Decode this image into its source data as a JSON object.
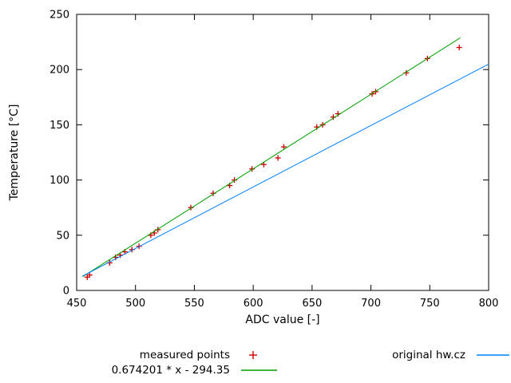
{
  "chart_data": {
    "type": "scatter",
    "title": "",
    "xlabel": "ADC value [-]",
    "ylabel": "Temperature [°C]",
    "xlim": [
      450,
      800
    ],
    "ylim": [
      0,
      250
    ],
    "xticks": [
      450,
      500,
      550,
      600,
      650,
      700,
      750,
      800
    ],
    "yticks": [
      0,
      50,
      100,
      150,
      200,
      250
    ],
    "grid": false,
    "legend_position": "below-chart",
    "series": [
      {
        "name": "measured points",
        "type": "points",
        "marker": "plus",
        "color": "#cc0000",
        "points": [
          [
            459,
            12
          ],
          [
            461,
            14
          ],
          [
            478,
            25
          ],
          [
            483,
            30
          ],
          [
            487,
            32
          ],
          [
            491,
            35
          ],
          [
            497,
            37
          ],
          [
            503,
            40
          ],
          [
            513,
            50
          ],
          [
            516,
            52
          ],
          [
            519,
            55
          ],
          [
            547,
            75
          ],
          [
            566,
            88
          ],
          [
            580,
            95
          ],
          [
            584,
            100
          ],
          [
            599,
            110
          ],
          [
            609,
            114
          ],
          [
            621,
            120
          ],
          [
            626,
            130
          ],
          [
            654,
            148
          ],
          [
            659,
            150
          ],
          [
            668,
            157
          ],
          [
            672,
            160
          ],
          [
            701,
            178
          ],
          [
            704,
            180
          ],
          [
            730,
            197
          ],
          [
            748,
            210
          ],
          [
            775,
            220
          ]
        ]
      },
      {
        "name": "0.674201 * x - 294.35",
        "type": "line",
        "color": "#00a000",
        "slope": 0.674201,
        "intercept": -294.35,
        "x_range": [
          455,
          776
        ]
      },
      {
        "name": "original hw.cz",
        "type": "line",
        "color": "#0080ff",
        "slope": 0.5565,
        "intercept": -240.2,
        "x_range": [
          455,
          800
        ]
      }
    ]
  }
}
